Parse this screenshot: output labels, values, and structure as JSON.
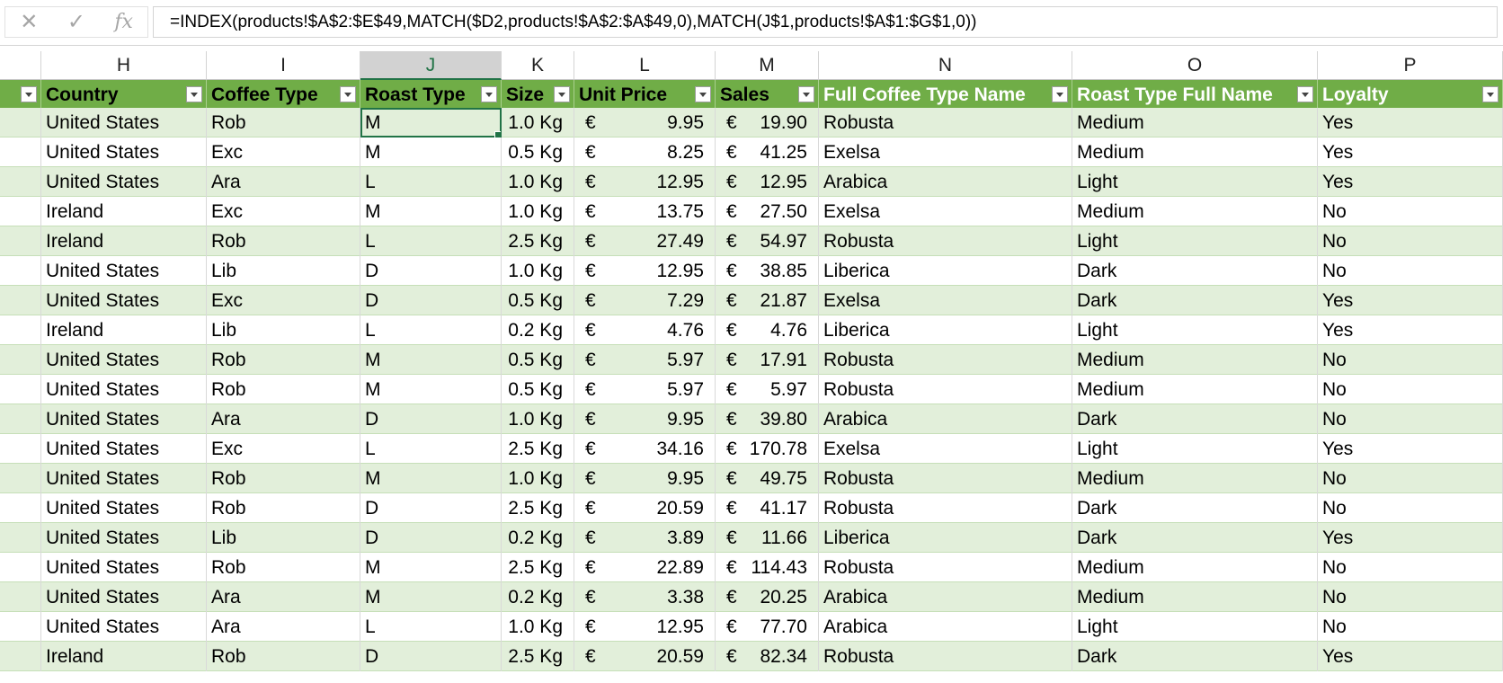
{
  "formula_bar": {
    "cancel_icon": "close-icon",
    "enter_icon": "check-icon",
    "fx_label": "fx",
    "formula": "=INDEX(products!$A$2:$E$49,MATCH($D2,products!$A$2:$A$49,0),MATCH(J$1,products!$A$1:$G$1,0))"
  },
  "columns": [
    "H",
    "I",
    "J",
    "K",
    "L",
    "M",
    "N",
    "O",
    "P"
  ],
  "selected_column": "J",
  "table_headers": [
    "Country",
    "Coffee Type",
    "Roast Type",
    "Size",
    "Unit Price",
    "Sales",
    "Full Coffee Type Name",
    "Roast Type Full Name",
    "Loyalty"
  ],
  "currency_symbol": "€",
  "rows": [
    {
      "country": "United States",
      "coffee": "Rob",
      "roast": "M",
      "size": "1.0 Kg",
      "price": "9.95",
      "sales": "19.90",
      "full_coffee": "Robusta",
      "roast_full": "Medium",
      "loyalty": "Yes"
    },
    {
      "country": "United States",
      "coffee": "Exc",
      "roast": "M",
      "size": "0.5 Kg",
      "price": "8.25",
      "sales": "41.25",
      "full_coffee": "Exelsa",
      "roast_full": "Medium",
      "loyalty": "Yes"
    },
    {
      "country": "United States",
      "coffee": "Ara",
      "roast": "L",
      "size": "1.0 Kg",
      "price": "12.95",
      "sales": "12.95",
      "full_coffee": "Arabica",
      "roast_full": "Light",
      "loyalty": "Yes"
    },
    {
      "country": "Ireland",
      "coffee": "Exc",
      "roast": "M",
      "size": "1.0 Kg",
      "price": "13.75",
      "sales": "27.50",
      "full_coffee": "Exelsa",
      "roast_full": "Medium",
      "loyalty": "No"
    },
    {
      "country": "Ireland",
      "coffee": "Rob",
      "roast": "L",
      "size": "2.5 Kg",
      "price": "27.49",
      "sales": "54.97",
      "full_coffee": "Robusta",
      "roast_full": "Light",
      "loyalty": "No"
    },
    {
      "country": "United States",
      "coffee": "Lib",
      "roast": "D",
      "size": "1.0 Kg",
      "price": "12.95",
      "sales": "38.85",
      "full_coffee": "Liberica",
      "roast_full": "Dark",
      "loyalty": "No"
    },
    {
      "country": "United States",
      "coffee": "Exc",
      "roast": "D",
      "size": "0.5 Kg",
      "price": "7.29",
      "sales": "21.87",
      "full_coffee": "Exelsa",
      "roast_full": "Dark",
      "loyalty": "Yes"
    },
    {
      "country": "Ireland",
      "coffee": "Lib",
      "roast": "L",
      "size": "0.2 Kg",
      "price": "4.76",
      "sales": "4.76",
      "full_coffee": "Liberica",
      "roast_full": "Light",
      "loyalty": "Yes"
    },
    {
      "country": "United States",
      "coffee": "Rob",
      "roast": "M",
      "size": "0.5 Kg",
      "price": "5.97",
      "sales": "17.91",
      "full_coffee": "Robusta",
      "roast_full": "Medium",
      "loyalty": "No"
    },
    {
      "country": "United States",
      "coffee": "Rob",
      "roast": "M",
      "size": "0.5 Kg",
      "price": "5.97",
      "sales": "5.97",
      "full_coffee": "Robusta",
      "roast_full": "Medium",
      "loyalty": "No"
    },
    {
      "country": "United States",
      "coffee": "Ara",
      "roast": "D",
      "size": "1.0 Kg",
      "price": "9.95",
      "sales": "39.80",
      "full_coffee": "Arabica",
      "roast_full": "Dark",
      "loyalty": "No"
    },
    {
      "country": "United States",
      "coffee": "Exc",
      "roast": "L",
      "size": "2.5 Kg",
      "price": "34.16",
      "sales": "170.78",
      "full_coffee": "Exelsa",
      "roast_full": "Light",
      "loyalty": "Yes"
    },
    {
      "country": "United States",
      "coffee": "Rob",
      "roast": "M",
      "size": "1.0 Kg",
      "price": "9.95",
      "sales": "49.75",
      "full_coffee": "Robusta",
      "roast_full": "Medium",
      "loyalty": "No"
    },
    {
      "country": "United States",
      "coffee": "Rob",
      "roast": "D",
      "size": "2.5 Kg",
      "price": "20.59",
      "sales": "41.17",
      "full_coffee": "Robusta",
      "roast_full": "Dark",
      "loyalty": "No"
    },
    {
      "country": "United States",
      "coffee": "Lib",
      "roast": "D",
      "size": "0.2 Kg",
      "price": "3.89",
      "sales": "11.66",
      "full_coffee": "Liberica",
      "roast_full": "Dark",
      "loyalty": "Yes"
    },
    {
      "country": "United States",
      "coffee": "Rob",
      "roast": "M",
      "size": "2.5 Kg",
      "price": "22.89",
      "sales": "114.43",
      "full_coffee": "Robusta",
      "roast_full": "Medium",
      "loyalty": "No"
    },
    {
      "country": "United States",
      "coffee": "Ara",
      "roast": "M",
      "size": "0.2 Kg",
      "price": "3.38",
      "sales": "20.25",
      "full_coffee": "Arabica",
      "roast_full": "Medium",
      "loyalty": "No"
    },
    {
      "country": "United States",
      "coffee": "Ara",
      "roast": "L",
      "size": "1.0 Kg",
      "price": "12.95",
      "sales": "77.70",
      "full_coffee": "Arabica",
      "roast_full": "Light",
      "loyalty": "No"
    },
    {
      "country": "Ireland",
      "coffee": "Rob",
      "roast": "D",
      "size": "2.5 Kg",
      "price": "20.59",
      "sales": "82.34",
      "full_coffee": "Robusta",
      "roast_full": "Dark",
      "loyalty": "Yes"
    }
  ],
  "colors": {
    "header_green": "#70ad47",
    "band_green": "#e2efda",
    "selection_green": "#217346"
  }
}
